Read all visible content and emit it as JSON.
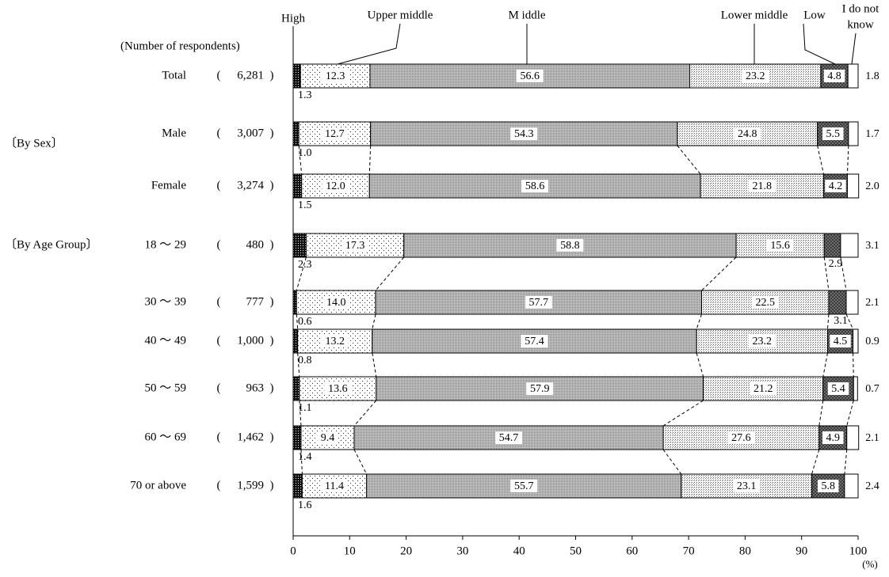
{
  "chart_data": {
    "type": "bar",
    "orientation": "horizontal",
    "stacked": true,
    "respondents_header": "(Number of respondents)",
    "series": [
      {
        "name": "High",
        "pattern": "dense-dark"
      },
      {
        "name": "Upper middle",
        "pattern": "light-dots"
      },
      {
        "name": "M iddle",
        "pattern": "medium-gray"
      },
      {
        "name": "Lower middle",
        "pattern": "fine-dots"
      },
      {
        "name": "Low",
        "pattern": "dark-check"
      },
      {
        "name": "I do not know",
        "pattern": "white"
      }
    ],
    "groups": [
      {
        "label": ""
      },
      {
        "label": "〔By Sex〕"
      },
      {
        "label": "〔By Age Group〕"
      }
    ],
    "rows": [
      {
        "category": "Total",
        "group_label": "",
        "n": "6,281",
        "values": [
          1.3,
          12.3,
          56.6,
          23.2,
          4.8,
          1.8
        ],
        "labels": [
          "1.3",
          "12.3",
          "56.6",
          "23.2",
          "4.8",
          "1.8"
        ]
      },
      {
        "category": "Male",
        "group_label": "〔By Sex〕",
        "n": "3,007",
        "values": [
          1.0,
          12.7,
          54.3,
          24.8,
          5.5,
          1.7
        ],
        "labels": [
          "1.0",
          "12.7",
          "54.3",
          "24.8",
          "5.5",
          "1.7"
        ]
      },
      {
        "category": "Female",
        "group_label": "",
        "n": "3,274",
        "values": [
          1.5,
          12.0,
          58.6,
          21.8,
          4.2,
          2.0
        ],
        "labels": [
          "1.5",
          "12.0",
          "58.6",
          "21.8",
          "4.2",
          "2.0"
        ]
      },
      {
        "category": "18 ～ 29",
        "group_label": "〔By Age Group〕",
        "n": "480",
        "values": [
          2.3,
          17.3,
          58.8,
          15.6,
          2.9,
          3.1
        ],
        "labels": [
          "2.3",
          "17.3",
          "58.8",
          "15.6",
          "2.9",
          "3.1"
        ]
      },
      {
        "category": "30 ～ 39",
        "group_label": "",
        "n": "777",
        "values": [
          0.6,
          14.0,
          57.7,
          22.5,
          3.1,
          2.1
        ],
        "labels": [
          "0.6",
          "14.0",
          "57.7",
          "22.5",
          "3.1",
          "2.1"
        ]
      },
      {
        "category": "40 ～ 49",
        "group_label": "",
        "n": "1,000",
        "values": [
          0.8,
          13.2,
          57.4,
          23.2,
          4.5,
          0.9
        ],
        "labels": [
          "0.8",
          "13.2",
          "57.4",
          "23.2",
          "4.5",
          "0.9"
        ]
      },
      {
        "category": "50 ～ 59",
        "group_label": "",
        "n": "963",
        "values": [
          1.1,
          13.6,
          57.9,
          21.2,
          5.4,
          0.7
        ],
        "labels": [
          "1.1",
          "13.6",
          "57.9",
          "21.2",
          "5.4",
          "0.7"
        ]
      },
      {
        "category": "60 ～ 69",
        "group_label": "",
        "n": "1,462",
        "values": [
          1.4,
          9.4,
          54.7,
          27.6,
          4.9,
          2.1
        ],
        "labels": [
          "1.4",
          "9.4",
          "54.7",
          "27.6",
          "4.9",
          "2.1"
        ]
      },
      {
        "category": "70 or above",
        "group_label": "",
        "n": "1,599",
        "values": [
          1.6,
          11.4,
          55.7,
          23.1,
          5.8,
          2.4
        ],
        "labels": [
          "1.6",
          "11.4",
          "55.7",
          "23.1",
          "5.8",
          "2.4"
        ]
      }
    ],
    "x_ticks": [
      "0",
      "10",
      "20",
      "30",
      "40",
      "50",
      "60",
      "70",
      "80",
      "90",
      "100"
    ],
    "x_unit": "(%)",
    "xlim": [
      0,
      100
    ]
  }
}
